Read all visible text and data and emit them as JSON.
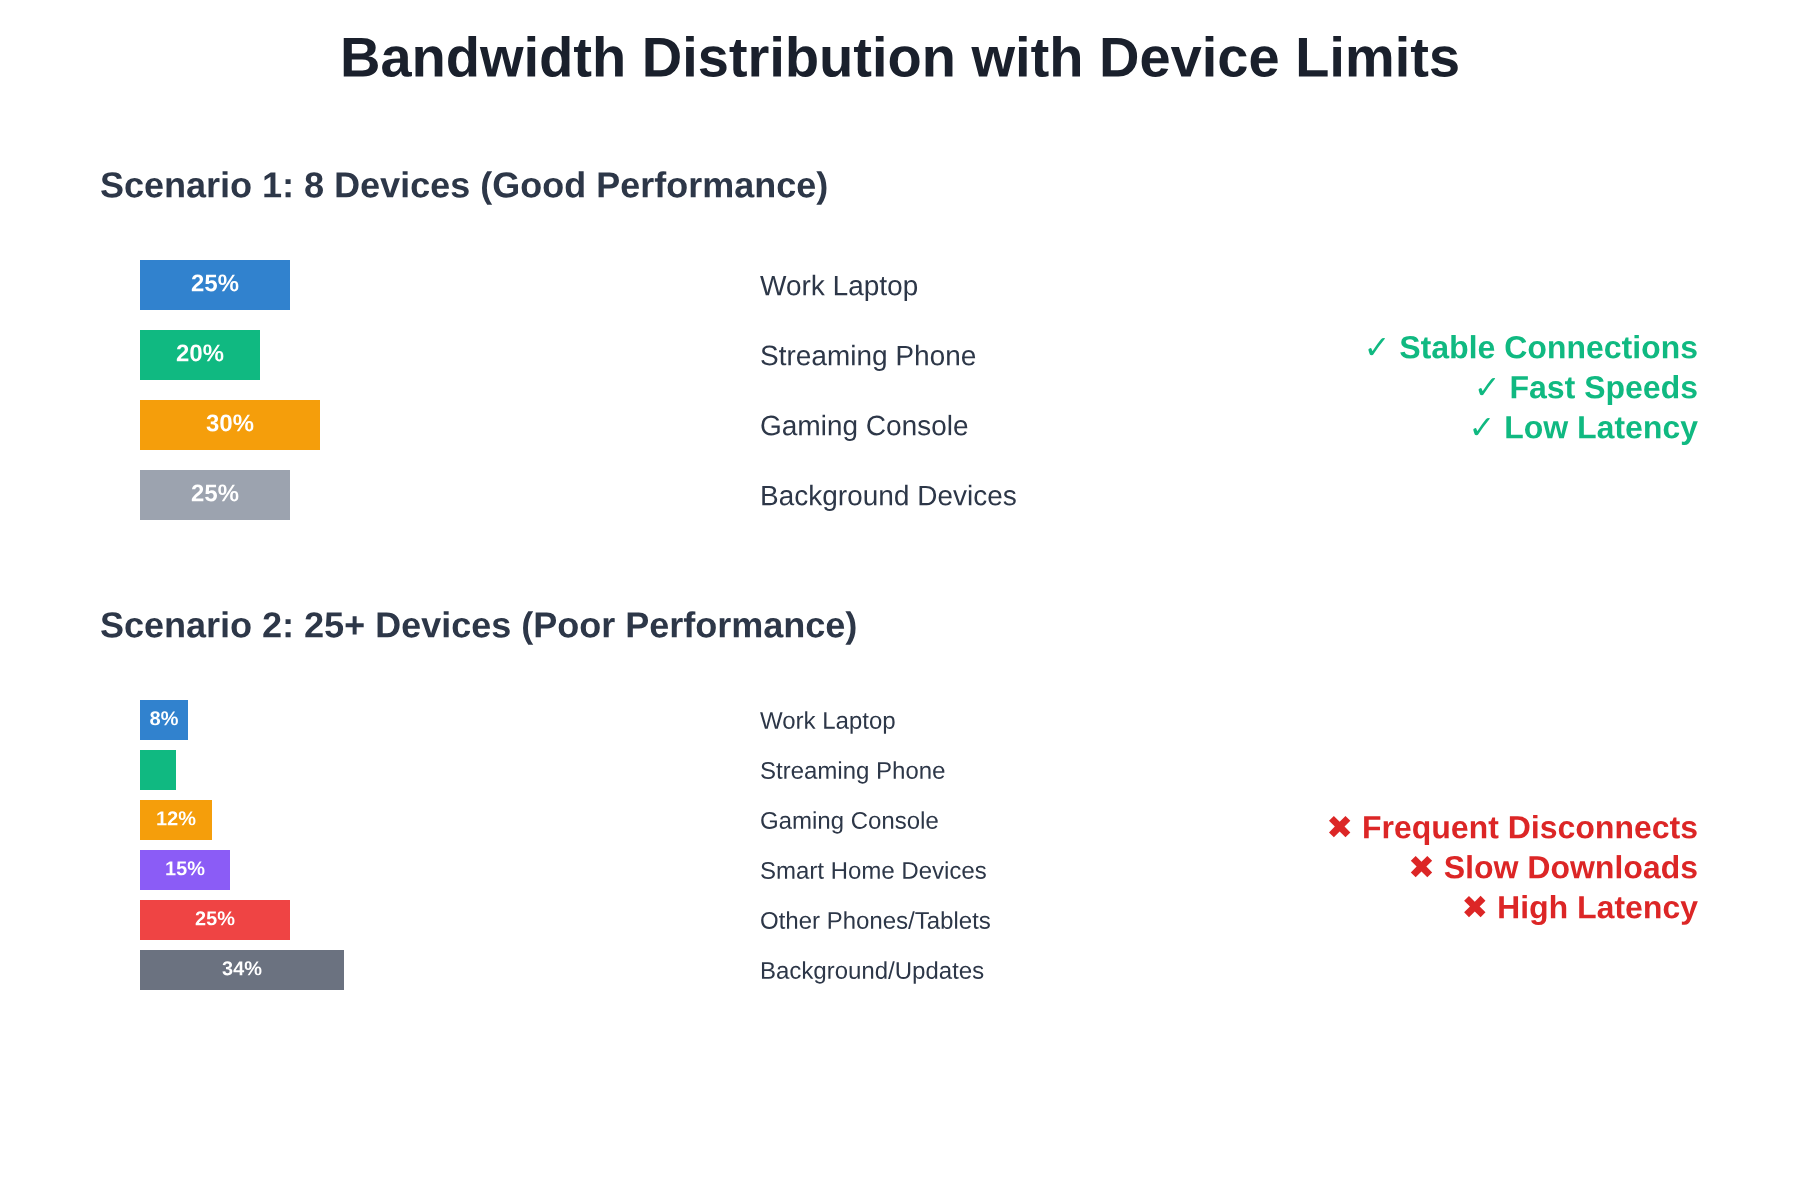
{
  "chart_data": [
    {
      "type": "bar",
      "orientation": "horizontal",
      "title": "Bandwidth Distribution with Device Limits",
      "subtitle": "Scenario 1: 8 Devices (Good Performance)",
      "categories": [
        "Work Laptop",
        "Streaming Phone",
        "Gaming Console",
        "Background Devices"
      ],
      "values": [
        25,
        20,
        30,
        25
      ],
      "colors": [
        "#3182ce",
        "#10b981",
        "#f59e0b",
        "#9ca3af"
      ],
      "value_labels": [
        "25%",
        "20%",
        "30%",
        "25%"
      ],
      "annotations": [
        "✓ Stable Connections",
        "✓ Fast Speeds",
        "✓ Low Latency"
      ]
    },
    {
      "type": "bar",
      "orientation": "horizontal",
      "subtitle": "Scenario 2: 25+ Devices (Poor Performance)",
      "categories": [
        "Work Laptop",
        "Streaming Phone",
        "Gaming Console",
        "Smart Home Devices",
        "Other Phones/Tablets",
        "Background/Updates"
      ],
      "values": [
        8,
        6,
        12,
        15,
        25,
        34
      ],
      "colors": [
        "#3182ce",
        "#10b981",
        "#f59e0b",
        "#8b5cf6",
        "#ef4444",
        "#6b7280"
      ],
      "value_labels": [
        "8%",
        null,
        "12%",
        "15%",
        "25%",
        "34%"
      ],
      "annotations": [
        "✖ Frequent Disconnects",
        "✖ Slow Downloads",
        "✖ High Latency"
      ]
    }
  ]
}
